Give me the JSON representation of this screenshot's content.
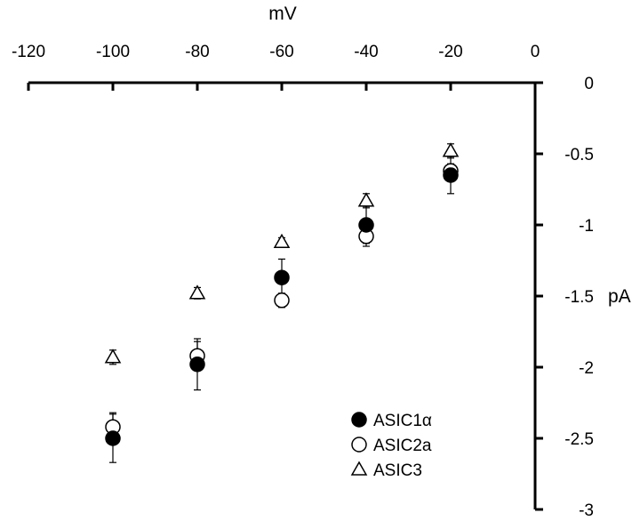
{
  "chart_data": {
    "type": "scatter",
    "xlabel": "mV",
    "ylabel": "pA",
    "xlim": [
      -120,
      0
    ],
    "ylim": [
      -3,
      0
    ],
    "xticks": [
      "-120",
      "-100",
      "-80",
      "-60",
      "-40",
      "-20",
      "0"
    ],
    "yticks": [
      "0",
      "-0.5",
      "-1",
      "-1.5",
      "-2",
      "-2.5",
      "-3"
    ],
    "x_axis_position": "top",
    "y_axis_position": "right",
    "grid": false,
    "legend": "bottom-right",
    "series": [
      {
        "name": "ASIC1α",
        "marker": "filled-circle",
        "color": "#000000",
        "x": [
          -100,
          -80,
          -60,
          -40,
          -20
        ],
        "y": [
          -2.5,
          -1.98,
          -1.37,
          -1.0,
          -0.65
        ],
        "err": [
          0.17,
          0.18,
          0.13,
          0.13,
          0.13
        ]
      },
      {
        "name": "ASIC2a",
        "marker": "open-circle",
        "color": "#000000",
        "x": [
          -100,
          -80,
          -60,
          -40,
          -20
        ],
        "y": [
          -2.42,
          -1.92,
          -1.53,
          -1.08,
          -0.62
        ],
        "err": [
          0.1,
          0.1,
          0.05,
          0.07,
          0.05
        ]
      },
      {
        "name": "ASIC3",
        "marker": "open-triangle",
        "color": "#000000",
        "x": [
          -100,
          -80,
          -60,
          -40,
          -20
        ],
        "y": [
          -1.93,
          -1.48,
          -1.12,
          -0.83,
          -0.48
        ],
        "err": [
          0.05,
          0.04,
          0.03,
          0.05,
          0.05
        ]
      }
    ]
  }
}
